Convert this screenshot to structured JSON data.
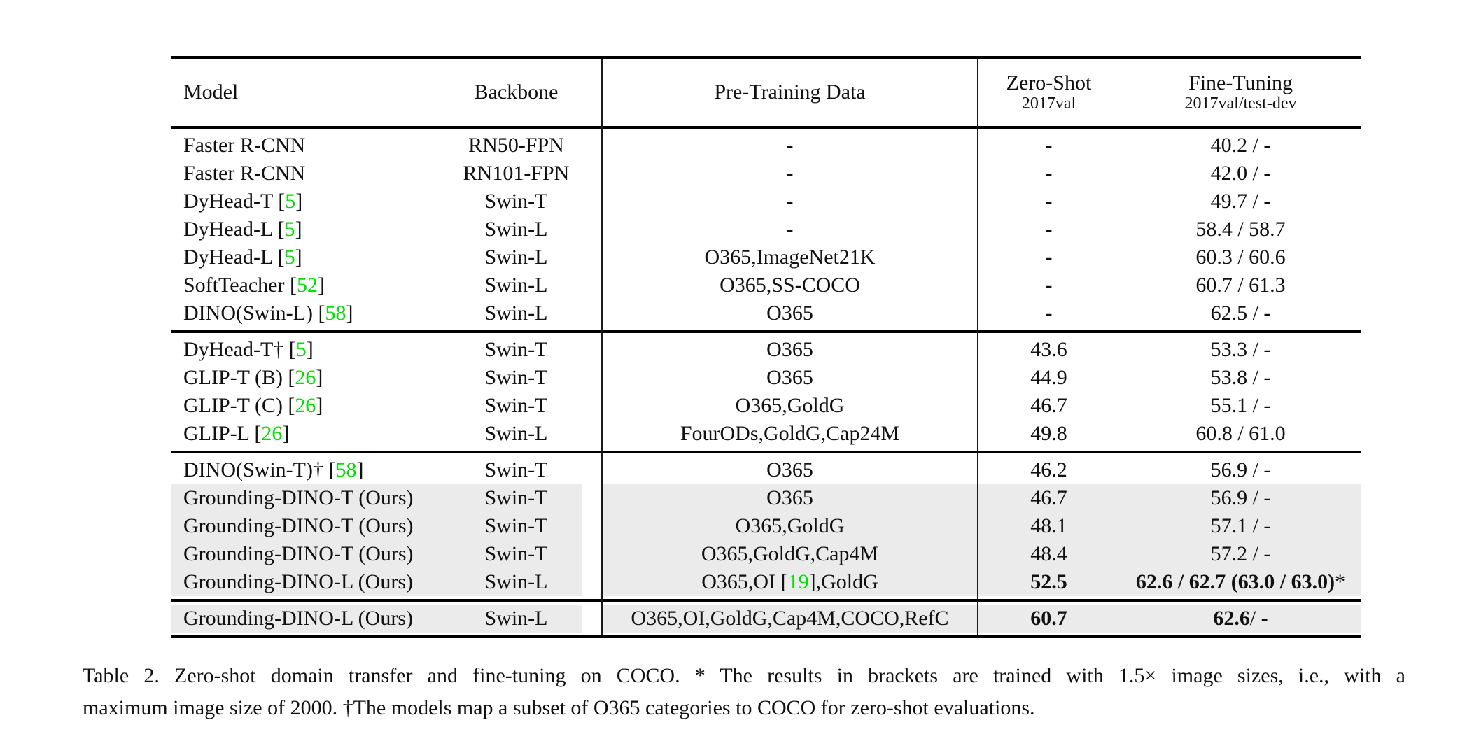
{
  "colors": {
    "citation_green": "#00e000",
    "row_highlight": "#ebebeb"
  },
  "table": {
    "header": {
      "model": "Model",
      "backbone": "Backbone",
      "pretraining": "Pre-Training Data",
      "zero_shot": "Zero-Shot",
      "zero_shot_sub": "2017val",
      "fine_tuning": "Fine-Tuning",
      "fine_tuning_sub": "2017val/test-dev"
    },
    "groups": [
      {
        "rows": [
          {
            "highlight": false,
            "model": "Faster R-CNN",
            "backbone": "RN50-FPN",
            "pretraining": "-",
            "zero_shot": "-",
            "fine_tuning": "40.2 / -"
          },
          {
            "highlight": false,
            "model": "Faster R-CNN",
            "backbone": "RN101-FPN",
            "pretraining": "-",
            "zero_shot": "-",
            "fine_tuning": "42.0 / -"
          },
          {
            "highlight": false,
            "model": "DyHead-T [[5]]",
            "backbone": "Swin-T",
            "pretraining": "-",
            "zero_shot": "-",
            "fine_tuning": "49.7 / -"
          },
          {
            "highlight": false,
            "model": "DyHead-L [[5]]",
            "backbone": "Swin-L",
            "pretraining": "-",
            "zero_shot": "-",
            "fine_tuning": "58.4 / 58.7"
          },
          {
            "highlight": false,
            "model": "DyHead-L [[5]]",
            "backbone": "Swin-L",
            "pretraining": "O365,ImageNet21K",
            "zero_shot": "-",
            "fine_tuning": "60.3 / 60.6"
          },
          {
            "highlight": false,
            "model": "SoftTeacher [[52]]",
            "backbone": "Swin-L",
            "pretraining": "O365,SS-COCO",
            "zero_shot": "-",
            "fine_tuning": "60.7 / 61.3"
          },
          {
            "highlight": false,
            "model": "DINO(Swin-L) [[58]]",
            "backbone": "Swin-L",
            "pretraining": "O365",
            "zero_shot": "-",
            "fine_tuning": "62.5 / -"
          }
        ]
      },
      {
        "rows": [
          {
            "highlight": false,
            "model": "DyHead-T† [[5]]",
            "backbone": "Swin-T",
            "pretraining": "O365",
            "zero_shot": "43.6",
            "fine_tuning": "53.3 / -"
          },
          {
            "highlight": false,
            "model": "GLIP-T (B) [[26]]",
            "backbone": "Swin-T",
            "pretraining": "O365",
            "zero_shot": "44.9",
            "fine_tuning": "53.8 / -"
          },
          {
            "highlight": false,
            "model": "GLIP-T (C) [[26]]",
            "backbone": "Swin-T",
            "pretraining": "O365,GoldG",
            "zero_shot": "46.7",
            "fine_tuning": "55.1 / -"
          },
          {
            "highlight": false,
            "model": "GLIP-L [[26]]",
            "backbone": "Swin-L",
            "pretraining": "FourODs,GoldG,Cap24M",
            "zero_shot": "49.8",
            "fine_tuning": "60.8 / 61.0"
          }
        ]
      },
      {
        "rows": [
          {
            "highlight": false,
            "model": "DINO(Swin-T)† [[58]]",
            "backbone": "Swin-T",
            "pretraining": "O365",
            "zero_shot": "46.2",
            "fine_tuning": "56.9 / -"
          },
          {
            "highlight": true,
            "model": "Grounding-DINO-T (Ours)",
            "backbone": "Swin-T",
            "pretraining": "O365",
            "zero_shot": "46.7",
            "fine_tuning": "56.9 / -"
          },
          {
            "highlight": true,
            "model": "Grounding-DINO-T (Ours)",
            "backbone": "Swin-T",
            "pretraining": "O365,GoldG",
            "zero_shot": "48.1",
            "fine_tuning": "57.1 / -"
          },
          {
            "highlight": true,
            "model": "Grounding-DINO-T (Ours)",
            "backbone": "Swin-T",
            "pretraining": "O365,GoldG,Cap4M",
            "zero_shot": "48.4",
            "fine_tuning": "57.2 / -"
          },
          {
            "highlight": true,
            "model": "Grounding-DINO-L (Ours)",
            "backbone": "Swin-L",
            "pretraining": "O365,OI [[19]],GoldG",
            "zero_shot": "**52.5**",
            "fine_tuning": "**62.6 / 62.7 (63.0 / 63.0)***"
          }
        ]
      },
      {
        "rows": [
          {
            "highlight": true,
            "model": "Grounding-DINO-L (Ours)",
            "backbone": "Swin-L",
            "pretraining": "O365,OI,GoldG,Cap4M,COCO,RefC",
            "zero_shot": "**60.7**",
            "fine_tuning": "**62.6** / -"
          }
        ]
      }
    ]
  },
  "caption": {
    "line1": "Table 2. Zero-shot domain transfer and fine-tuning on COCO. * The results in brackets are trained with 1.5× image sizes, i.e., with a",
    "line2": "maximum image size of 2000. †The models map a subset of O365 categories to COCO for zero-shot evaluations."
  }
}
